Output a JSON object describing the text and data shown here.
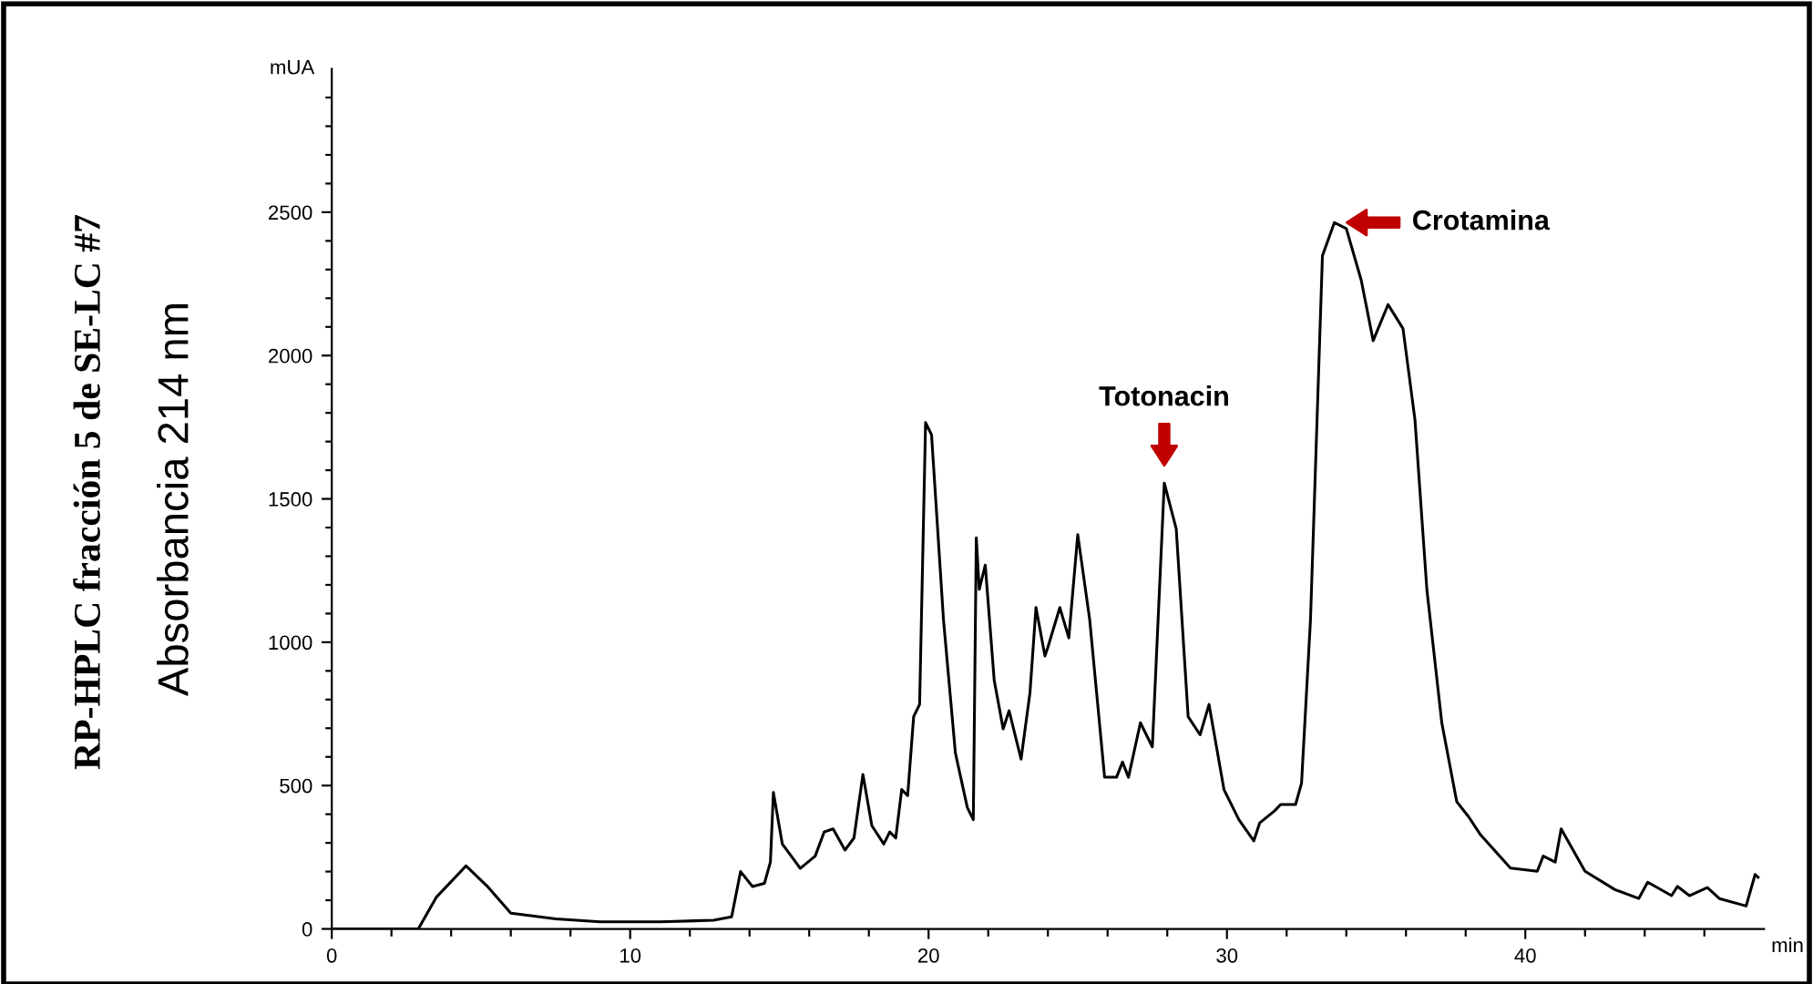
{
  "chart_data": {
    "type": "line",
    "title": "RP-HPLC fracción 5 de SE-LC #7",
    "ylabel": "Absorbancia 214 nm",
    "xlabel": "min",
    "annotations": [
      "mUA",
      {
        "text": "Totonacin",
        "x": 27.9,
        "y": 1555
      },
      {
        "text": "Crotamina",
        "x": 33.6,
        "y": 2464
      }
    ],
    "x": [
      0,
      2.9,
      3.5,
      4.5,
      5.2,
      6.0,
      7.5,
      9,
      11,
      12.8,
      13.4,
      13.7,
      14.1,
      14.5,
      14.7,
      14.8,
      15.1,
      15.4,
      15.7,
      16.2,
      16.5,
      16.8,
      17.2,
      17.5,
      17.8,
      18.1,
      18.5,
      18.7,
      18.9,
      19.1,
      19.3,
      19.5,
      19.7,
      19.9,
      20.1,
      20.5,
      20.9,
      21.3,
      21.5,
      21.6,
      21.7,
      21.9,
      22.2,
      22.5,
      22.7,
      23.1,
      23.4,
      23.6,
      23.9,
      24.0,
      24.4,
      24.7,
      25.0,
      25.4,
      25.9,
      26.3,
      26.5,
      26.7,
      27.1,
      27.5,
      27.9,
      28.3,
      28.7,
      29.1,
      29.4,
      29.9,
      30.4,
      30.9,
      31.1,
      31.6,
      31.8,
      32.3,
      32.5,
      32.8,
      33.2,
      33.6,
      34.0,
      34.5,
      34.9,
      35.4,
      35.9,
      36.3,
      36.7,
      37.2,
      37.7,
      38.1,
      38.5,
      39.5,
      40.4,
      40.6,
      41.0,
      41.2,
      42.0,
      43.0,
      43.8,
      44.1,
      44.9,
      45.1,
      45.5,
      46.1,
      46.5,
      47.4,
      47.7,
      47.8
    ],
    "series": [
      {
        "color": "#000000",
        "values": [
          0,
          0,
          110,
          220,
          150,
          55,
          35,
          25,
          25,
          30,
          42,
          200,
          148,
          159,
          233,
          476,
          296,
          254,
          211,
          254,
          338,
          349,
          275,
          317,
          539,
          360,
          296,
          338,
          317,
          486,
          465,
          740,
          783,
          1766,
          1724,
          1079,
          613,
          423,
          381,
          1364,
          1184,
          1269,
          867,
          698,
          761,
          592,
          825,
          1121,
          952,
          983,
          1121,
          1015,
          1375,
          1079,
          529,
          529,
          582,
          529,
          719,
          635,
          1555,
          1396,
          740,
          677,
          783,
          486,
          381,
          307,
          370,
          412,
          434,
          434,
          508,
          1079,
          2348,
          2464,
          2443,
          2263,
          2052,
          2178,
          2094,
          1777,
          1184,
          719,
          444,
          391,
          328,
          212,
          201,
          254,
          233,
          349,
          201,
          137,
          106,
          163,
          116,
          148,
          116,
          144,
          106,
          80,
          190,
          180
        ]
      }
    ],
    "xlim": [
      0,
      48
    ],
    "ylim": [
      0,
      3000
    ],
    "xticks": [
      0,
      {
        "value": 2,
        "label": null
      },
      {
        "value": 4,
        "label": null
      },
      {
        "value": 6,
        "label": null
      },
      {
        "value": 8,
        "label": null
      },
      10,
      {
        "value": 12,
        "label": null
      },
      {
        "value": 14,
        "label": null
      },
      {
        "value": 16,
        "label": null
      },
      {
        "value": 18,
        "label": null
      },
      20,
      {
        "value": 22,
        "label": null
      },
      {
        "value": 24,
        "label": null
      },
      {
        "value": 26,
        "label": null
      },
      {
        "value": 28,
        "label": null
      },
      30,
      {
        "value": 32,
        "label": null
      },
      {
        "value": 34,
        "label": null
      },
      {
        "value": 36,
        "label": null
      },
      {
        "value": 38,
        "label": null
      },
      40,
      {
        "value": 42,
        "label": null
      },
      {
        "value": 44,
        "label": null
      },
      {
        "value": 46,
        "label": null
      }
    ],
    "yticks": [
      0,
      {
        "value": 100,
        "label": null
      },
      {
        "value": 200,
        "label": null
      },
      {
        "value": 300,
        "label": null
      },
      {
        "value": 400,
        "label": null
      },
      500,
      {
        "value": 600,
        "label": null
      },
      {
        "value": 700,
        "label": null
      },
      {
        "value": 800,
        "label": null
      },
      {
        "value": 900,
        "label": null
      },
      1000,
      {
        "value": 1100,
        "label": null
      },
      {
        "value": 1200,
        "label": null
      },
      {
        "value": 1300,
        "label": null
      },
      {
        "value": 1400,
        "label": null
      },
      1500,
      {
        "value": 1600,
        "label": null
      },
      {
        "value": 1700,
        "label": null
      },
      {
        "value": 1800,
        "label": null
      },
      {
        "value": 1900,
        "label": null
      },
      2000,
      {
        "value": 2100,
        "label": null
      },
      {
        "value": 2200,
        "label": null
      },
      {
        "value": 2300,
        "label": null
      },
      {
        "value": 2400,
        "label": null
      },
      2500,
      {
        "value": 2600,
        "label": null
      },
      {
        "value": 2700,
        "label": null
      },
      {
        "value": 2800,
        "label": null
      },
      {
        "value": 2900,
        "label": null
      }
    ],
    "grid": false,
    "legend": false,
    "marker": "none",
    "line_style": "solid"
  }
}
